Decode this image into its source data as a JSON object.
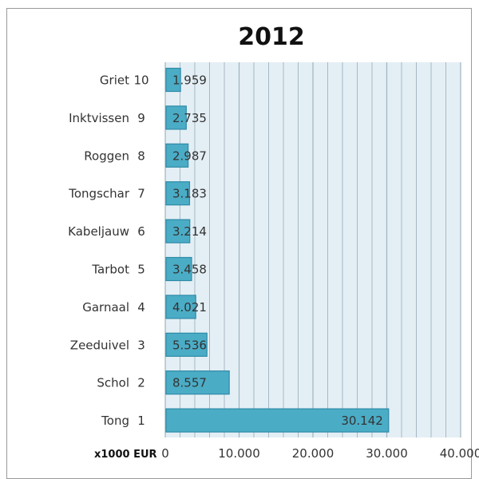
{
  "chart_data": {
    "type": "bar",
    "orientation": "horizontal",
    "title": "2012",
    "unit_label": "x1000 EUR",
    "categories": [
      {
        "name": "Griet",
        "rank": "10"
      },
      {
        "name": "Inktvissen",
        "rank": "9"
      },
      {
        "name": "Roggen",
        "rank": "8"
      },
      {
        "name": "Tongschar",
        "rank": "7"
      },
      {
        "name": "Kabeljauw",
        "rank": "6"
      },
      {
        "name": "Tarbot",
        "rank": "5"
      },
      {
        "name": "Garnaal",
        "rank": "4"
      },
      {
        "name": "Zeeduivel",
        "rank": "3"
      },
      {
        "name": "Schol",
        "rank": "2"
      },
      {
        "name": "Tong",
        "rank": "1"
      }
    ],
    "values": [
      1959,
      2735,
      2987,
      3183,
      3214,
      3458,
      4021,
      5536,
      8557,
      30142
    ],
    "value_labels": [
      "1.959",
      "2.735",
      "2.987",
      "3.183",
      "3.214",
      "3.458",
      "4.021",
      "5.536",
      "8.557",
      "30.142"
    ],
    "xlim": [
      0,
      40000
    ],
    "xticks": [
      0,
      10000,
      20000,
      30000,
      40000
    ],
    "xtick_labels": [
      "0",
      "10.000",
      "20.000",
      "30.000",
      "40.000"
    ],
    "grid": true,
    "legend": "none",
    "colors": {
      "bar": "#4bacc6",
      "bar_edge": "#2e8aa6",
      "plot_bg": "#e4eff5",
      "grid": "#9fb3bf"
    }
  }
}
